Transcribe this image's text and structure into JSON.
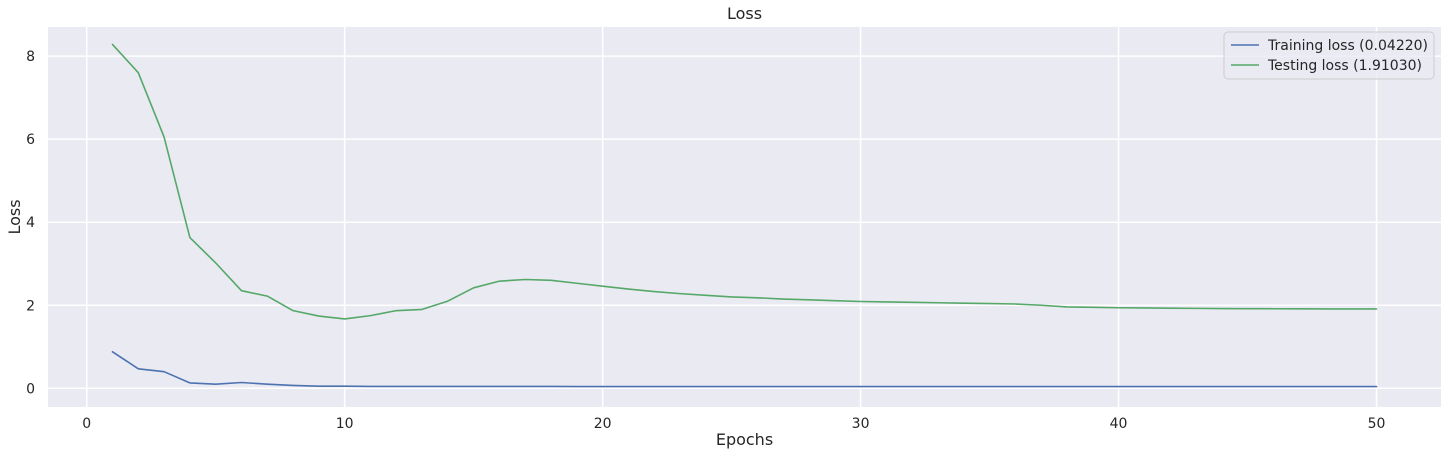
{
  "chart_data": {
    "type": "line",
    "title": "Loss",
    "xlabel": "Epochs",
    "ylabel": "Loss",
    "xlim": [
      -1.5,
      52.5
    ],
    "ylim": [
      -0.45,
      8.7
    ],
    "xticks": [
      0,
      10,
      20,
      30,
      40,
      50
    ],
    "yticks": [
      0,
      2,
      4,
      6,
      8
    ],
    "grid": true,
    "legend_position": "top-right",
    "x": [
      1,
      2,
      3,
      4,
      5,
      6,
      7,
      8,
      9,
      10,
      11,
      12,
      13,
      14,
      15,
      16,
      17,
      18,
      19,
      20,
      21,
      22,
      23,
      24,
      25,
      26,
      27,
      28,
      29,
      30,
      31,
      32,
      33,
      34,
      35,
      36,
      37,
      38,
      39,
      40,
      41,
      42,
      43,
      44,
      45,
      46,
      47,
      48,
      49,
      50
    ],
    "series": [
      {
        "name": "Training loss (0.04220)",
        "color": "#4c72b0",
        "values": [
          0.88,
          0.47,
          0.4,
          0.13,
          0.1,
          0.14,
          0.1,
          0.07,
          0.05,
          0.05,
          0.045,
          0.045,
          0.045,
          0.045,
          0.044,
          0.044,
          0.044,
          0.044,
          0.043,
          0.043,
          0.043,
          0.043,
          0.043,
          0.043,
          0.043,
          0.043,
          0.043,
          0.043,
          0.043,
          0.043,
          0.043,
          0.043,
          0.043,
          0.043,
          0.043,
          0.043,
          0.043,
          0.043,
          0.043,
          0.043,
          0.0425,
          0.0425,
          0.0425,
          0.0425,
          0.0425,
          0.0423,
          0.0423,
          0.0422,
          0.0422,
          0.0422
        ]
      },
      {
        "name": "Testing loss (1.91030)",
        "color": "#55a868",
        "values": [
          8.28,
          7.6,
          6.05,
          3.63,
          3.02,
          2.35,
          2.22,
          1.87,
          1.74,
          1.67,
          1.75,
          1.87,
          1.9,
          2.1,
          2.42,
          2.58,
          2.62,
          2.6,
          2.53,
          2.46,
          2.39,
          2.33,
          2.28,
          2.24,
          2.2,
          2.18,
          2.15,
          2.13,
          2.11,
          2.09,
          2.08,
          2.07,
          2.06,
          2.05,
          2.04,
          2.03,
          2.0,
          1.96,
          1.95,
          1.94,
          1.935,
          1.93,
          1.925,
          1.92,
          1.918,
          1.916,
          1.914,
          1.912,
          1.911,
          1.9103
        ]
      }
    ]
  }
}
